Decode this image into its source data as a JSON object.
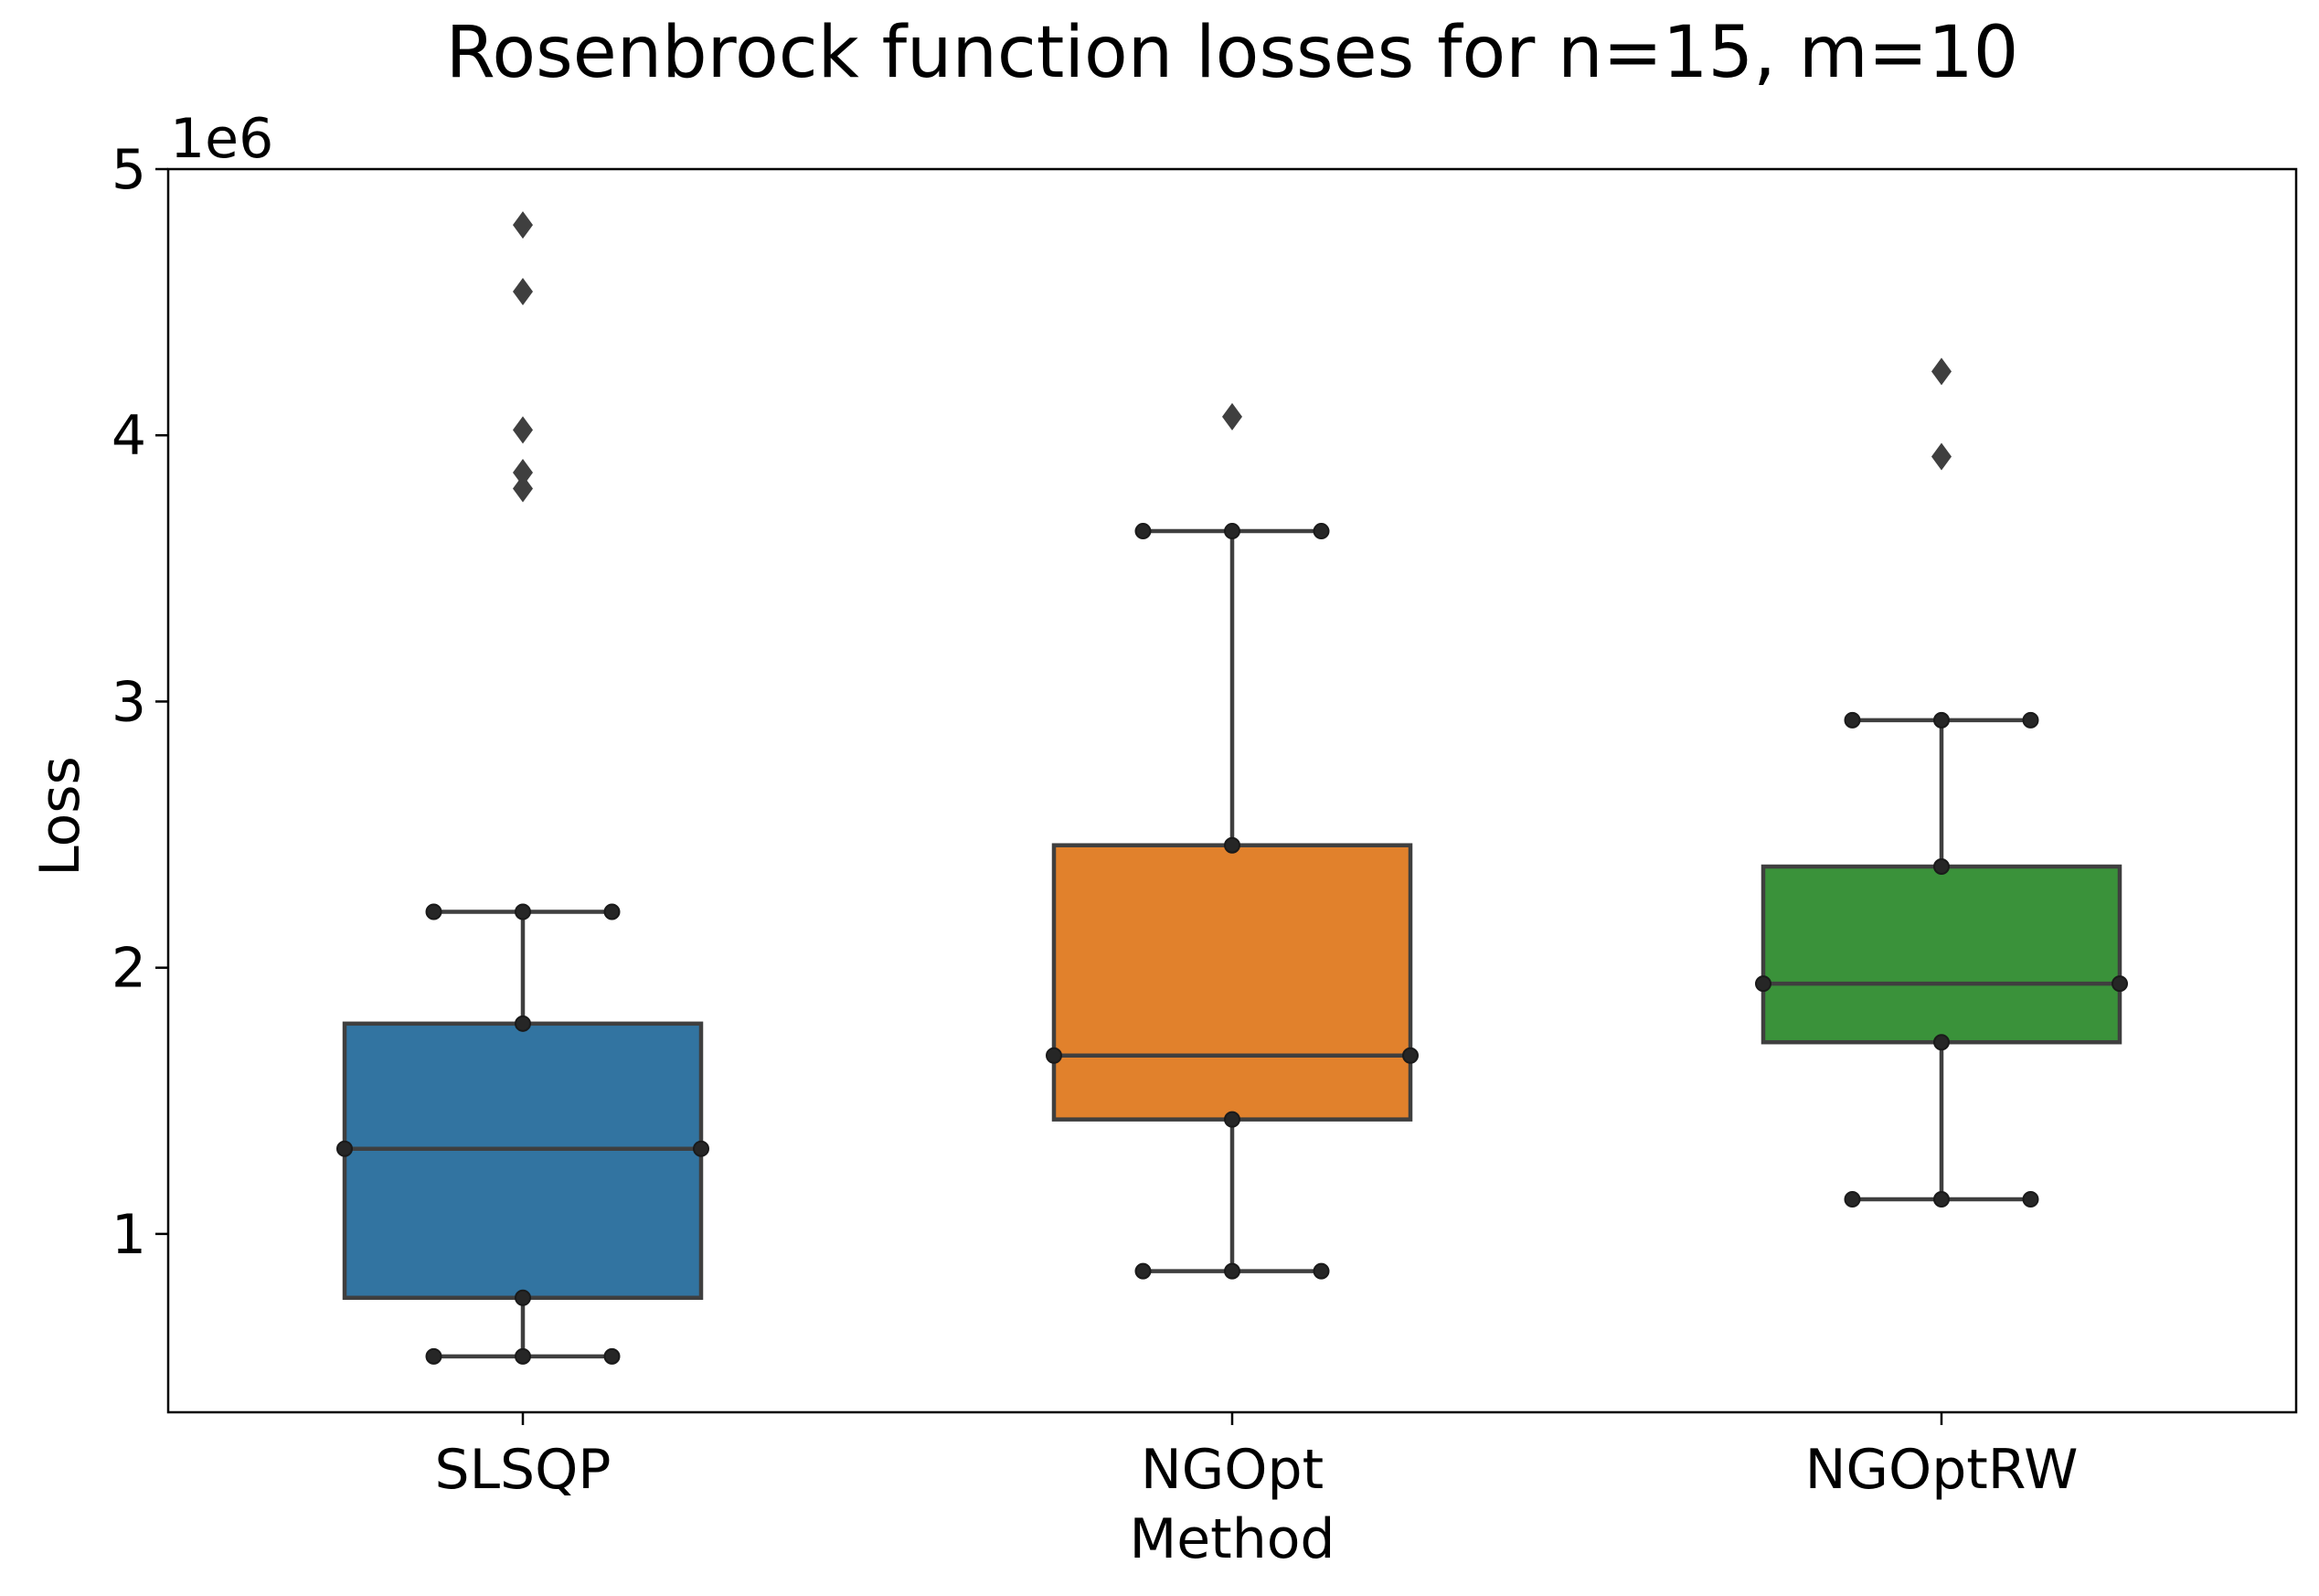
{
  "chart_data": {
    "type": "box",
    "title": "Rosenbrock function losses for n=15, m=10",
    "xlabel": "Method",
    "ylabel": "Loss",
    "y_multiplier_label": "1e6",
    "y_multiplier": 1000000,
    "ylim": [
      0.33,
      5.0
    ],
    "yticks": [
      1,
      2,
      3,
      4,
      5
    ],
    "categories": [
      "SLSQP",
      "NGOpt",
      "NGOptRW"
    ],
    "series": [
      {
        "name": "SLSQP",
        "color": "#3274a1",
        "q1": 0.76,
        "median": 1.32,
        "q3": 1.79,
        "whisker_low": 0.54,
        "whisker_high": 2.21,
        "outliers": [
          4.79,
          4.54,
          4.02,
          3.86,
          3.8
        ]
      },
      {
        "name": "NGOpt",
        "color": "#e1812c",
        "q1": 1.43,
        "median": 1.67,
        "q3": 2.46,
        "whisker_low": 0.86,
        "whisker_high": 3.64,
        "outliers": [
          4.07
        ]
      },
      {
        "name": "NGOptRW",
        "color": "#3a923a",
        "q1": 1.72,
        "median": 1.94,
        "q3": 2.38,
        "whisker_low": 1.13,
        "whisker_high": 2.93,
        "outliers": [
          4.24,
          3.92
        ]
      }
    ],
    "line_color": "#3f3f3f",
    "marker_color": "#262626",
    "grid": false,
    "legend": "none"
  }
}
